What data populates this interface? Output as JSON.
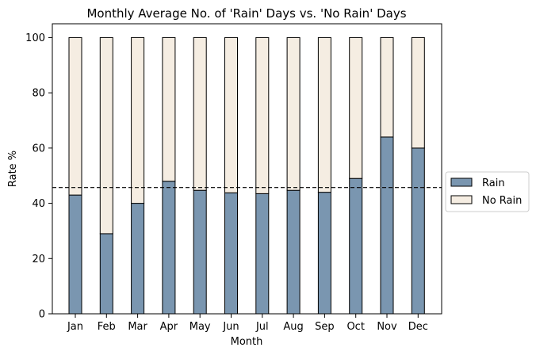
{
  "chart_data": {
    "type": "bar",
    "stacked": true,
    "title": "Monthly Average No. of 'Rain' Days vs. 'No Rain' Days",
    "xlabel": "Month",
    "ylabel": "Rate %",
    "categories": [
      "Jan",
      "Feb",
      "Mar",
      "Apr",
      "May",
      "Jun",
      "Jul",
      "Aug",
      "Sep",
      "Oct",
      "Nov",
      "Dec"
    ],
    "series": [
      {
        "name": "Rain",
        "color": "#7a96b0",
        "values": [
          43,
          29,
          40,
          48,
          44.7,
          43.8,
          43.5,
          44.7,
          44,
          49,
          64,
          60
        ]
      },
      {
        "name": "No Rain",
        "color": "#f5ede2",
        "values": [
          57,
          71,
          60,
          52,
          55.3,
          56.2,
          56.5,
          55.3,
          56,
          51,
          36,
          40
        ]
      }
    ],
    "ylim": [
      0,
      105
    ],
    "yticks": [
      0,
      20,
      40,
      60,
      80,
      100
    ],
    "reference_line": {
      "value": 45.7,
      "style": "dashed"
    },
    "grid": false,
    "legend_position": "outside right"
  }
}
